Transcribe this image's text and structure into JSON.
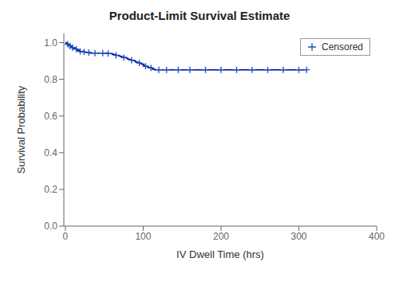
{
  "chart_data": {
    "type": "step",
    "title": "Product-Limit Survival Estimate",
    "x_label": "IV Dwell Time (hrs)",
    "y_label": "Survival Probability",
    "xlim": [
      -2,
      400
    ],
    "ylim": [
      0.0,
      1.05
    ],
    "xticks": [
      0,
      100,
      200,
      300,
      400
    ],
    "yticks": [
      {
        "value": 0.0,
        "label": "0.0"
      },
      0.2,
      0.4,
      0.6,
      0.8,
      {
        "value": 1.0,
        "label": "1.0"
      }
    ],
    "grid": false,
    "legend": "upper right",
    "series": [
      {
        "type": "step",
        "color": "#00008B",
        "x": [
          0,
          1,
          2,
          3,
          4,
          5,
          6,
          7,
          8,
          9,
          10,
          12,
          14,
          15,
          16,
          18,
          19,
          20,
          22,
          24,
          25,
          26,
          28,
          30,
          32,
          35,
          38,
          40,
          42,
          45,
          48,
          50,
          55,
          60,
          62,
          65,
          68,
          70,
          72,
          75,
          78,
          80,
          82,
          85,
          88,
          90,
          92,
          95,
          96,
          98,
          100,
          101,
          103,
          105,
          107,
          110,
          112,
          115,
          120,
          125,
          130,
          135,
          140,
          145,
          150,
          155,
          160,
          170,
          180,
          190,
          200,
          210,
          220,
          230,
          240,
          250,
          260,
          270,
          280,
          290,
          300,
          310
        ],
        "values": [
          1.0,
          0.997,
          0.994,
          0.991,
          0.988,
          0.985,
          0.982,
          0.979,
          0.976,
          0.973,
          0.97,
          0.967,
          0.964,
          0.961,
          0.958,
          0.955,
          0.952,
          0.952,
          0.952,
          0.949,
          0.949,
          0.946,
          0.946,
          0.946,
          0.943,
          0.943,
          0.943,
          0.943,
          0.943,
          0.943,
          0.943,
          0.943,
          0.94,
          0.937,
          0.934,
          0.931,
          0.928,
          0.925,
          0.922,
          0.919,
          0.916,
          0.91,
          0.907,
          0.904,
          0.901,
          0.895,
          0.892,
          0.889,
          0.886,
          0.883,
          0.88,
          0.874,
          0.871,
          0.868,
          0.865,
          0.862,
          0.855,
          0.852,
          0.852,
          0.852,
          0.852,
          0.852,
          0.852,
          0.852,
          0.852,
          0.852,
          0.852,
          0.852,
          0.852,
          0.852,
          0.852,
          0.852,
          0.852,
          0.852,
          0.852,
          0.852,
          0.852,
          0.852,
          0.852,
          0.852,
          0.852,
          0.852
        ]
      },
      {
        "name": "Censored",
        "type": "scatter",
        "marker": "+",
        "color": "#1F4FBF",
        "x": [
          3,
          6,
          9,
          14,
          19,
          24,
          30,
          38,
          48,
          55,
          65,
          75,
          85,
          95,
          103,
          110,
          120,
          130,
          145,
          160,
          180,
          200,
          220,
          240,
          260,
          280,
          300,
          310
        ],
        "values": [
          0.991,
          0.982,
          0.973,
          0.964,
          0.952,
          0.949,
          0.946,
          0.943,
          0.943,
          0.94,
          0.931,
          0.919,
          0.904,
          0.889,
          0.871,
          0.862,
          0.852,
          0.852,
          0.852,
          0.852,
          0.852,
          0.852,
          0.852,
          0.852,
          0.852,
          0.852,
          0.852,
          0.852
        ]
      }
    ]
  }
}
